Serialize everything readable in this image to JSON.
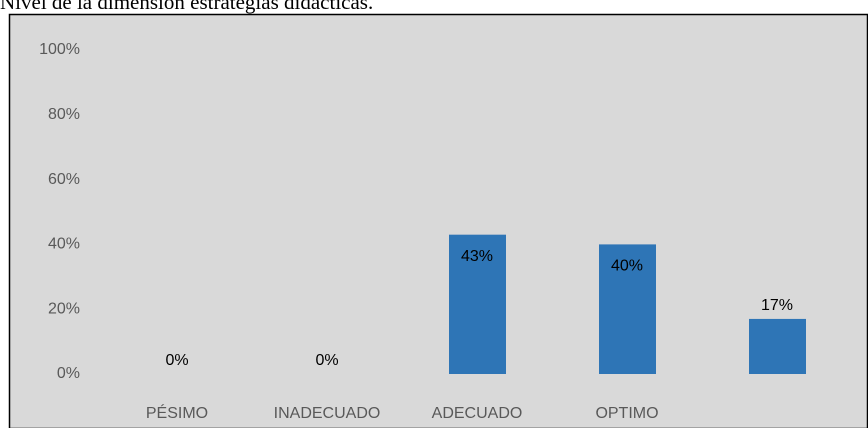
{
  "chart_data": {
    "type": "bar",
    "title": "Nivel de la dimensión estrategias didácticas.",
    "categories": [
      "PÉSIMO",
      "INADECUADO",
      "ADECUADO",
      "OPTIMO",
      null
    ],
    "values": [
      0,
      0,
      43,
      40,
      17
    ],
    "value_labels": [
      "0%",
      "0%",
      "43%",
      "40%",
      "17%"
    ],
    "color": "#2e75b6",
    "ylim": [
      0,
      100
    ],
    "yticks": [
      {
        "value": 0,
        "label": "0%"
      },
      {
        "value": 20,
        "label": "20%"
      },
      {
        "value": 40,
        "label": "40%"
      },
      {
        "value": 60,
        "label": "60%"
      },
      {
        "value": 80,
        "label": "80%"
      },
      {
        "value": 100,
        "label": "100%"
      }
    ],
    "grid": false
  }
}
